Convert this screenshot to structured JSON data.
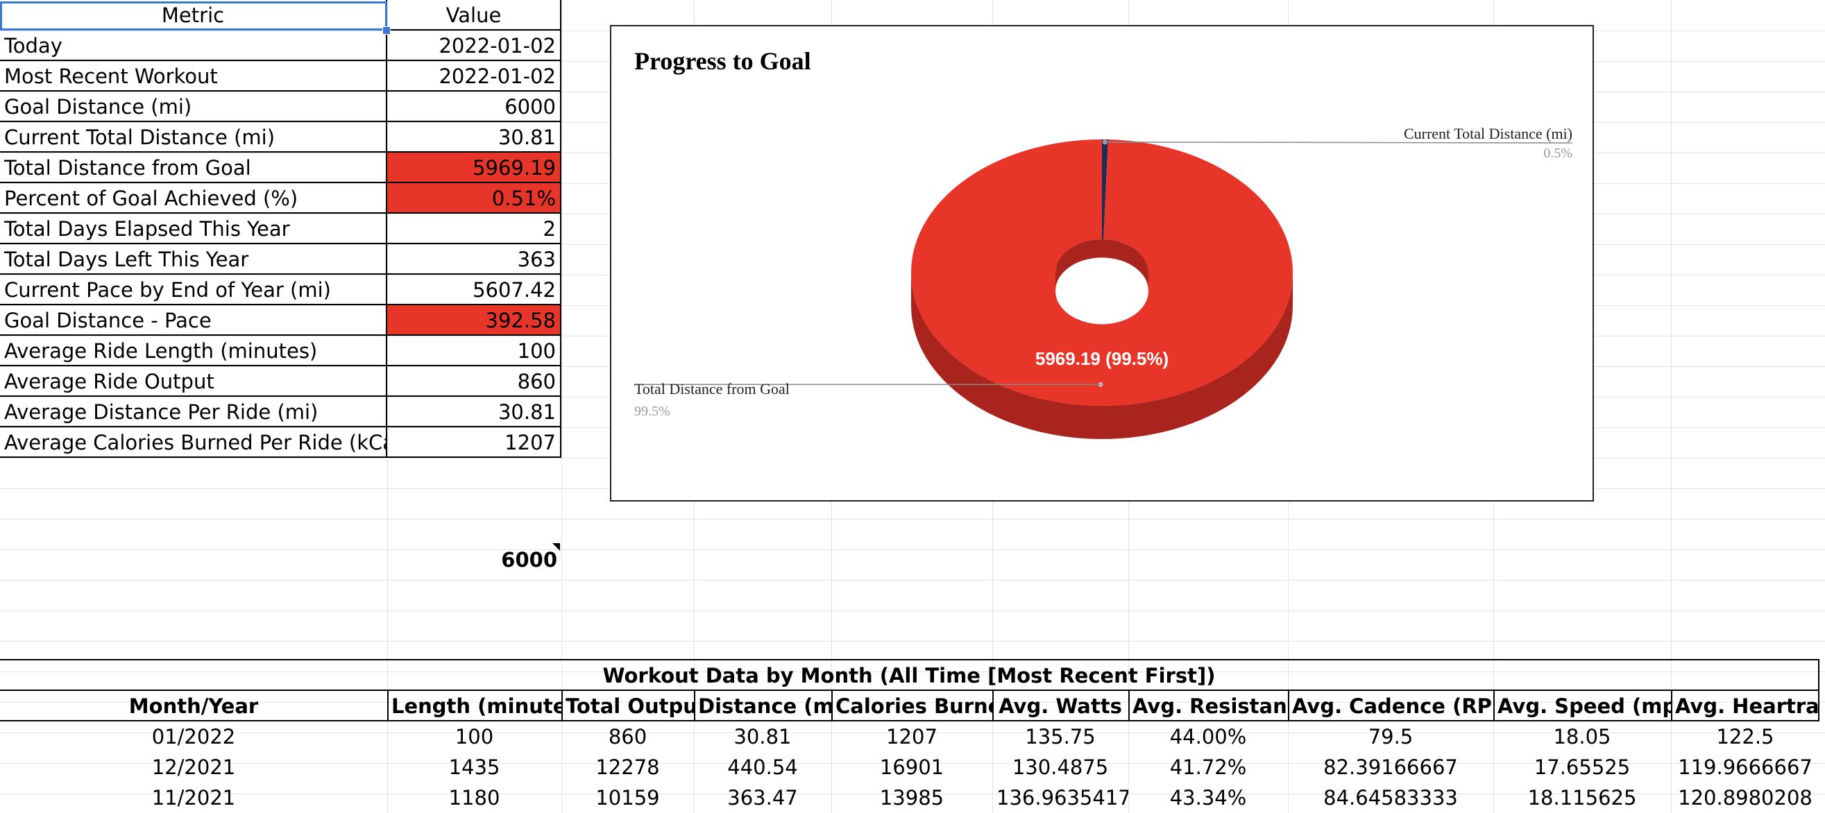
{
  "metrics": {
    "header": {
      "metric": "Metric",
      "value": "Value"
    },
    "rows": [
      {
        "label": "Today",
        "value": "2022-01-02",
        "highlight": false
      },
      {
        "label": "Most Recent Workout",
        "value": "2022-01-02",
        "highlight": false
      },
      {
        "label": "Goal Distance (mi)",
        "value": "6000",
        "highlight": false
      },
      {
        "label": "Current Total Distance (mi)",
        "value": "30.81",
        "highlight": false
      },
      {
        "label": "Total Distance from Goal",
        "value": "5969.19",
        "highlight": true
      },
      {
        "label": "Percent of Goal Achieved (%)",
        "value": "0.51%",
        "highlight": true
      },
      {
        "label": "Total Days Elapsed This Year",
        "value": "2",
        "highlight": false
      },
      {
        "label": "Total Days Left This Year",
        "value": "363",
        "highlight": false
      },
      {
        "label": "Current Pace by End of Year (mi)",
        "value": "5607.42",
        "highlight": false
      },
      {
        "label": "Goal Distance - Pace",
        "value": "392.58",
        "highlight": true
      },
      {
        "label": "Average Ride Length (minutes)",
        "value": "100",
        "highlight": false
      },
      {
        "label": "Average Ride Output",
        "value": "860",
        "highlight": false
      },
      {
        "label": "Average Distance Per Ride (mi)",
        "value": "30.81",
        "highlight": false
      },
      {
        "label": "Average Calories Burned Per Ride (kCal)",
        "value": "1207",
        "highlight": false
      }
    ]
  },
  "goal_cell": {
    "value": "6000"
  },
  "chart_data": {
    "type": "pie",
    "title": "Progress to Goal",
    "slices": [
      {
        "label": "Current Total Distance (mi)",
        "value": 30.81,
        "percent_label": "0.5%",
        "color": "#1f2a55"
      },
      {
        "label": "Total Distance from Goal",
        "value": 5969.19,
        "percent_label": "99.5%",
        "color": "#e8352a",
        "data_label": "5969.19 (99.5%)"
      }
    ]
  },
  "monthly": {
    "title": "Workout Data by Month (All Time [Most Recent First])",
    "columns": [
      "Month/Year",
      "Length (minutes)",
      "Total Output",
      "Distance (mi)",
      "Calories Burned",
      "Avg. Watts",
      "Avg. Resistance",
      "Avg. Cadence (RPM)",
      "Avg. Speed (mph)",
      "Avg. Heartrate"
    ],
    "rows": [
      [
        "01/2022",
        "100",
        "860",
        "30.81",
        "1207",
        "135.75",
        "44.00%",
        "79.5",
        "18.05",
        "122.5"
      ],
      [
        "12/2021",
        "1435",
        "12278",
        "440.54",
        "16901",
        "130.4875",
        "41.72%",
        "82.39166667",
        "17.65525",
        "119.9666667"
      ],
      [
        "11/2021",
        "1180",
        "10159",
        "363.47",
        "13985",
        "136.9635417",
        "43.34%",
        "84.64583333",
        "18.115625",
        "120.8980208"
      ]
    ]
  },
  "colors": {
    "highlight": "#e8352a",
    "selection": "#3a76d8",
    "slice_small": "#1f2a55"
  }
}
